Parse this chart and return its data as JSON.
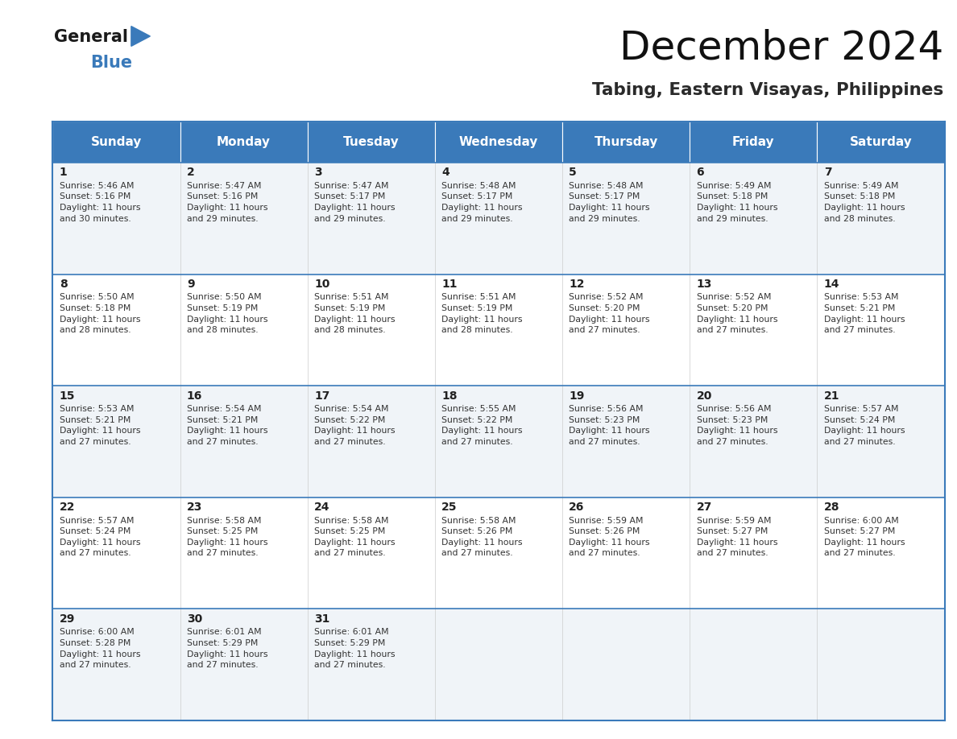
{
  "title": "December 2024",
  "subtitle": "Tabing, Eastern Visayas, Philippines",
  "days_of_week": [
    "Sunday",
    "Monday",
    "Tuesday",
    "Wednesday",
    "Thursday",
    "Friday",
    "Saturday"
  ],
  "header_bg": "#3a7aba",
  "header_text": "#ffffff",
  "cell_bg_odd": "#f0f4f8",
  "cell_bg_even": "#ffffff",
  "cell_border_color": "#3a7aba",
  "cell_inner_border": "#cccccc",
  "day_num_color": "#222222",
  "cell_text_color": "#333333",
  "calendar": [
    [
      {
        "day": 1,
        "sunrise": "5:46 AM",
        "sunset": "5:16 PM",
        "dl1": "11 hours",
        "dl2": "and 30 minutes."
      },
      {
        "day": 2,
        "sunrise": "5:47 AM",
        "sunset": "5:16 PM",
        "dl1": "11 hours",
        "dl2": "and 29 minutes."
      },
      {
        "day": 3,
        "sunrise": "5:47 AM",
        "sunset": "5:17 PM",
        "dl1": "11 hours",
        "dl2": "and 29 minutes."
      },
      {
        "day": 4,
        "sunrise": "5:48 AM",
        "sunset": "5:17 PM",
        "dl1": "11 hours",
        "dl2": "and 29 minutes."
      },
      {
        "day": 5,
        "sunrise": "5:48 AM",
        "sunset": "5:17 PM",
        "dl1": "11 hours",
        "dl2": "and 29 minutes."
      },
      {
        "day": 6,
        "sunrise": "5:49 AM",
        "sunset": "5:18 PM",
        "dl1": "11 hours",
        "dl2": "and 29 minutes."
      },
      {
        "day": 7,
        "sunrise": "5:49 AM",
        "sunset": "5:18 PM",
        "dl1": "11 hours",
        "dl2": "and 28 minutes."
      }
    ],
    [
      {
        "day": 8,
        "sunrise": "5:50 AM",
        "sunset": "5:18 PM",
        "dl1": "11 hours",
        "dl2": "and 28 minutes."
      },
      {
        "day": 9,
        "sunrise": "5:50 AM",
        "sunset": "5:19 PM",
        "dl1": "11 hours",
        "dl2": "and 28 minutes."
      },
      {
        "day": 10,
        "sunrise": "5:51 AM",
        "sunset": "5:19 PM",
        "dl1": "11 hours",
        "dl2": "and 28 minutes."
      },
      {
        "day": 11,
        "sunrise": "5:51 AM",
        "sunset": "5:19 PM",
        "dl1": "11 hours",
        "dl2": "and 28 minutes."
      },
      {
        "day": 12,
        "sunrise": "5:52 AM",
        "sunset": "5:20 PM",
        "dl1": "11 hours",
        "dl2": "and 27 minutes."
      },
      {
        "day": 13,
        "sunrise": "5:52 AM",
        "sunset": "5:20 PM",
        "dl1": "11 hours",
        "dl2": "and 27 minutes."
      },
      {
        "day": 14,
        "sunrise": "5:53 AM",
        "sunset": "5:21 PM",
        "dl1": "11 hours",
        "dl2": "and 27 minutes."
      }
    ],
    [
      {
        "day": 15,
        "sunrise": "5:53 AM",
        "sunset": "5:21 PM",
        "dl1": "11 hours",
        "dl2": "and 27 minutes."
      },
      {
        "day": 16,
        "sunrise": "5:54 AM",
        "sunset": "5:21 PM",
        "dl1": "11 hours",
        "dl2": "and 27 minutes."
      },
      {
        "day": 17,
        "sunrise": "5:54 AM",
        "sunset": "5:22 PM",
        "dl1": "11 hours",
        "dl2": "and 27 minutes."
      },
      {
        "day": 18,
        "sunrise": "5:55 AM",
        "sunset": "5:22 PM",
        "dl1": "11 hours",
        "dl2": "and 27 minutes."
      },
      {
        "day": 19,
        "sunrise": "5:56 AM",
        "sunset": "5:23 PM",
        "dl1": "11 hours",
        "dl2": "and 27 minutes."
      },
      {
        "day": 20,
        "sunrise": "5:56 AM",
        "sunset": "5:23 PM",
        "dl1": "11 hours",
        "dl2": "and 27 minutes."
      },
      {
        "day": 21,
        "sunrise": "5:57 AM",
        "sunset": "5:24 PM",
        "dl1": "11 hours",
        "dl2": "and 27 minutes."
      }
    ],
    [
      {
        "day": 22,
        "sunrise": "5:57 AM",
        "sunset": "5:24 PM",
        "dl1": "11 hours",
        "dl2": "and 27 minutes."
      },
      {
        "day": 23,
        "sunrise": "5:58 AM",
        "sunset": "5:25 PM",
        "dl1": "11 hours",
        "dl2": "and 27 minutes."
      },
      {
        "day": 24,
        "sunrise": "5:58 AM",
        "sunset": "5:25 PM",
        "dl1": "11 hours",
        "dl2": "and 27 minutes."
      },
      {
        "day": 25,
        "sunrise": "5:58 AM",
        "sunset": "5:26 PM",
        "dl1": "11 hours",
        "dl2": "and 27 minutes."
      },
      {
        "day": 26,
        "sunrise": "5:59 AM",
        "sunset": "5:26 PM",
        "dl1": "11 hours",
        "dl2": "and 27 minutes."
      },
      {
        "day": 27,
        "sunrise": "5:59 AM",
        "sunset": "5:27 PM",
        "dl1": "11 hours",
        "dl2": "and 27 minutes."
      },
      {
        "day": 28,
        "sunrise": "6:00 AM",
        "sunset": "5:27 PM",
        "dl1": "11 hours",
        "dl2": "and 27 minutes."
      }
    ],
    [
      {
        "day": 29,
        "sunrise": "6:00 AM",
        "sunset": "5:28 PM",
        "dl1": "11 hours",
        "dl2": "and 27 minutes."
      },
      {
        "day": 30,
        "sunrise": "6:01 AM",
        "sunset": "5:29 PM",
        "dl1": "11 hours",
        "dl2": "and 27 minutes."
      },
      {
        "day": 31,
        "sunrise": "6:01 AM",
        "sunset": "5:29 PM",
        "dl1": "11 hours",
        "dl2": "and 27 minutes."
      },
      null,
      null,
      null,
      null
    ]
  ],
  "logo_dark_color": "#1a1a1a",
  "logo_blue_color": "#3a7aba",
  "fig_width": 11.88,
  "fig_height": 9.18,
  "fig_dpi": 100
}
